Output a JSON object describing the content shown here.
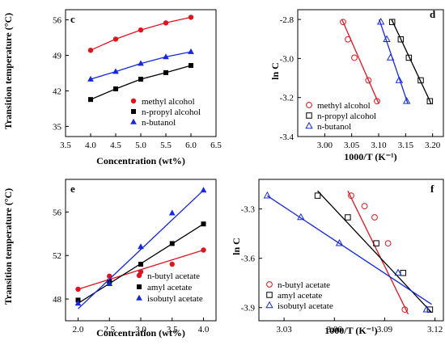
{
  "chart_data": [
    {
      "panel": "c",
      "type": "line",
      "marker": "filled",
      "xlabel": "Concentration (wt%)",
      "ylabel": "Transition temperature (°C)",
      "xlim": [
        3.5,
        6.5
      ],
      "ylim": [
        33,
        58
      ],
      "xticks": [
        "3.5",
        "4.0",
        "4.5",
        "5.0",
        "5.5",
        "6.0",
        "6.5"
      ],
      "yticks": [
        "35",
        "42",
        "49",
        "56"
      ],
      "legend": "inside-lower-center",
      "series": [
        {
          "name": "methyl alcohol",
          "color": "#e0141e",
          "shape": "circle",
          "x": [
            4.0,
            4.5,
            5.0,
            5.5,
            6.0
          ],
          "y": [
            50.0,
            52.2,
            54.0,
            55.4,
            56.5
          ]
        },
        {
          "name": "n-propyl alcohol",
          "color": "#000000",
          "shape": "square",
          "x": [
            4.0,
            4.5,
            5.0,
            5.5,
            6.0
          ],
          "y": [
            40.3,
            42.4,
            44.3,
            45.6,
            47.0
          ]
        },
        {
          "name": "n-butanol",
          "color": "#1428e0",
          "shape": "triangle",
          "x": [
            4.0,
            4.5,
            5.0,
            5.5,
            6.0
          ],
          "y": [
            44.3,
            45.8,
            47.4,
            48.7,
            49.7
          ]
        }
      ]
    },
    {
      "panel": "d",
      "type": "scatter",
      "marker": "open",
      "xlabel": "1000/T (K⁻¹)",
      "ylabel": "ln C",
      "xlim": [
        2.95,
        3.22
      ],
      "ylim": [
        -3.4,
        -2.75
      ],
      "xticks": [
        "3.00",
        "3.05",
        "3.10",
        "3.15",
        "3.20"
      ],
      "yticks": [
        "-2.8",
        "-3.0",
        "-3.2",
        "-3.4"
      ],
      "legend": "lower-left",
      "series": [
        {
          "name": "methyl alcohol",
          "color": "#e0141e",
          "shape": "circle",
          "x": [
            3.034,
            3.043,
            3.055,
            3.081,
            3.097
          ],
          "y": [
            -2.813,
            -2.902,
            -2.996,
            -3.112,
            -3.219
          ],
          "fit": [
            [
              3.032,
              -2.8
            ],
            [
              3.1,
              -3.23
            ]
          ]
        },
        {
          "name": "n-propyl alcohol",
          "color": "#000000",
          "shape": "square",
          "x": [
            3.125,
            3.141,
            3.156,
            3.178,
            3.195
          ],
          "y": [
            -2.813,
            -2.902,
            -2.996,
            -3.112,
            -3.219
          ],
          "fit": [
            [
              3.124,
              -2.8
            ],
            [
              3.197,
              -3.23
            ]
          ]
        },
        {
          "name": "n-butanol",
          "color": "#1428e0",
          "shape": "triangle",
          "x": [
            3.104,
            3.115,
            3.122,
            3.138,
            3.152
          ],
          "y": [
            -2.813,
            -2.902,
            -2.996,
            -3.112,
            -3.219
          ],
          "fit": [
            [
              3.101,
              -2.8
            ],
            [
              3.154,
              -3.23
            ]
          ]
        }
      ]
    },
    {
      "panel": "e",
      "type": "scatter",
      "marker": "filled",
      "xlabel": "Concentration (wt%)",
      "ylabel": "Transition temperature (°C)",
      "xlim": [
        1.8,
        4.2
      ],
      "ylim": [
        46,
        59
      ],
      "xticks": [
        "2.0",
        "2.5",
        "3.0",
        "3.5",
        "4.0"
      ],
      "yticks": [
        "48",
        "52",
        "56"
      ],
      "legend": "lower-right",
      "series": [
        {
          "name": "n-butyl acetate",
          "color": "#e0141e",
          "shape": "circle",
          "x": [
            2.0,
            2.5,
            3.0,
            3.5,
            4.0
          ],
          "y": [
            48.9,
            50.1,
            50.5,
            51.2,
            52.5
          ],
          "fit": [
            [
              2.0,
              48.9
            ],
            [
              4.0,
              52.5
            ]
          ]
        },
        {
          "name": "amyl acetate",
          "color": "#000000",
          "shape": "square",
          "x": [
            2.0,
            2.5,
            3.0,
            3.5,
            4.0
          ],
          "y": [
            47.9,
            49.6,
            51.2,
            53.1,
            54.9
          ],
          "fit": [
            [
              2.0,
              47.6
            ],
            [
              4.0,
              54.9
            ]
          ]
        },
        {
          "name": "isobutyl acetate",
          "color": "#1428e0",
          "shape": "triangle",
          "x": [
            2.0,
            2.5,
            3.0,
            3.5,
            4.0
          ],
          "y": [
            47.6,
            49.4,
            52.8,
            55.9,
            58.0
          ],
          "fit": [
            [
              2.0,
              47.1
            ],
            [
              4.0,
              58.0
            ]
          ]
        }
      ]
    },
    {
      "panel": "f",
      "type": "scatter",
      "marker": "open",
      "xlabel": "1000/T (K⁻¹)",
      "ylabel": "ln C",
      "xlim": [
        3.015,
        3.125
      ],
      "ylim": [
        -3.98,
        -3.12
      ],
      "xticks": [
        "3.03",
        "3.06",
        "3.09",
        "3.12"
      ],
      "yticks": [
        "-3.3",
        "-3.6",
        "-3.9"
      ],
      "legend": "lower-left",
      "series": [
        {
          "name": "n-butyl acetate",
          "color": "#e0141e",
          "shape": "circle",
          "x": [
            3.07,
            3.078,
            3.084,
            3.092,
            3.102
          ],
          "y": [
            -3.219,
            -3.283,
            -3.351,
            -3.509,
            -3.912
          ],
          "fit": [
            [
              3.068,
              -3.19
            ],
            [
              3.104,
              -3.94
            ]
          ]
        },
        {
          "name": "amyl acetate",
          "color": "#000000",
          "shape": "square",
          "x": [
            3.05,
            3.068,
            3.085,
            3.101,
            3.117
          ],
          "y": [
            -3.219,
            -3.351,
            -3.509,
            -3.689,
            -3.912
          ],
          "fit": [
            [
              3.05,
              -3.19
            ],
            [
              3.118,
              -3.93
            ]
          ]
        },
        {
          "name": "isobutyl acetate",
          "color": "#1428e0",
          "shape": "triangle",
          "x": [
            3.02,
            3.04,
            3.063,
            3.098,
            3.115
          ],
          "y": [
            -3.219,
            -3.351,
            -3.509,
            -3.689,
            -3.912
          ],
          "fit": [
            [
              3.02,
              -3.22
            ],
            [
              3.118,
              -3.88
            ]
          ]
        }
      ]
    }
  ]
}
